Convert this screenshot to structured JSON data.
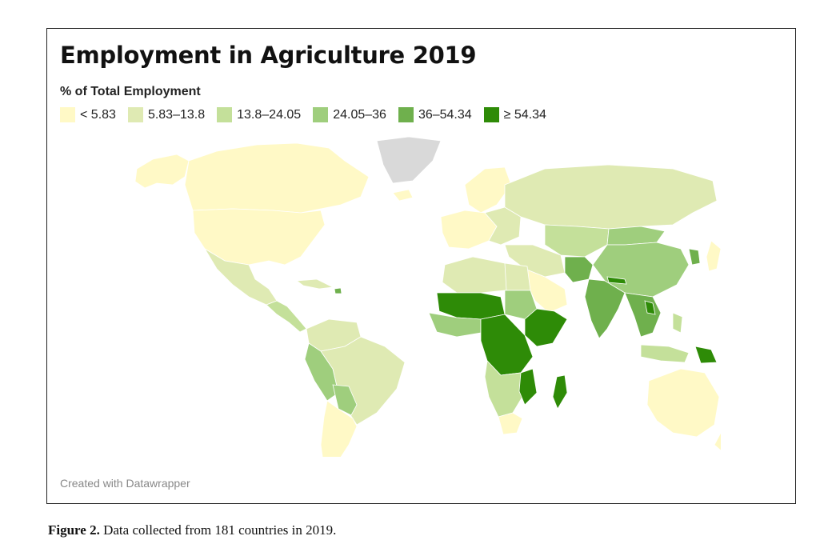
{
  "title": "Employment in Agriculture 2019",
  "subtitle": "% of Total Employment",
  "legend": [
    {
      "label": "< 5.83",
      "color": "#fff9c6"
    },
    {
      "label": "5.83–13.8",
      "color": "#dfeab3"
    },
    {
      "label": "13.8–24.05",
      "color": "#c4e09a"
    },
    {
      "label": "24.05–36",
      "color": "#9fce7d"
    },
    {
      "label": "36–54.34",
      "color": "#6fb04d"
    },
    {
      "label": "≥ 54.34",
      "color": "#2e8b07"
    }
  ],
  "no_data_color": "#d9d9d9",
  "credit": "Created with Datawrapper",
  "caption": {
    "label": "Figure 2.",
    "text": " Data collected from 181 countries in 2019."
  }
}
